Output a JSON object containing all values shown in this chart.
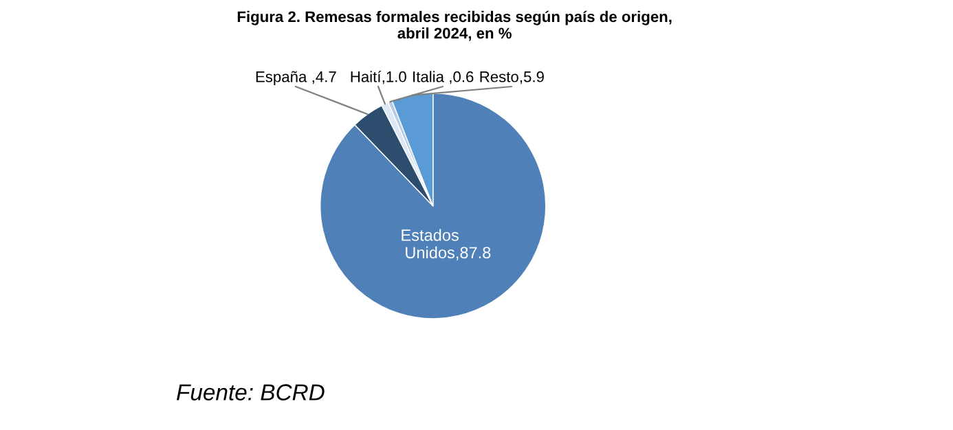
{
  "chart_data": {
    "type": "pie",
    "title": "Figura 2. Remesas formales recibidas según país de origen,\nabril 2024, en %",
    "categories": [
      "Estados Unidos",
      "España",
      "Haití",
      "Italia",
      "Resto"
    ],
    "values": [
      87.8,
      4.7,
      1.0,
      0.6,
      5.9
    ],
    "colors": [
      "#4f81b8",
      "#2c4d6e",
      "#dce8f5",
      "#b8cde3",
      "#5b9bd5"
    ],
    "value_labels": [
      ",87.8",
      " ,4.7",
      ",1.0",
      " ,0.6",
      ",5.9"
    ],
    "annotations": [
      "Fuente: BCRD"
    ]
  }
}
